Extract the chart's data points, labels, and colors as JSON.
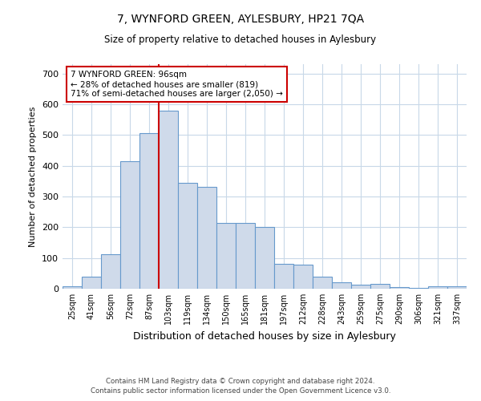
{
  "title": "7, WYNFORD GREEN, AYLESBURY, HP21 7QA",
  "subtitle": "Size of property relative to detached houses in Aylesbury",
  "xlabel": "Distribution of detached houses by size in Aylesbury",
  "ylabel": "Number of detached properties",
  "categories": [
    "25sqm",
    "41sqm",
    "56sqm",
    "72sqm",
    "87sqm",
    "103sqm",
    "119sqm",
    "134sqm",
    "150sqm",
    "165sqm",
    "181sqm",
    "197sqm",
    "212sqm",
    "228sqm",
    "243sqm",
    "259sqm",
    "275sqm",
    "290sqm",
    "306sqm",
    "321sqm",
    "337sqm"
  ],
  "values": [
    8,
    38,
    112,
    415,
    505,
    578,
    343,
    330,
    215,
    215,
    200,
    80,
    78,
    40,
    22,
    13,
    15,
    5,
    2,
    8,
    8
  ],
  "bar_color": "#cfdaea",
  "bar_edge_color": "#6699cc",
  "annotation_text": "7 WYNFORD GREEN: 96sqm\n← 28% of detached houses are smaller (819)\n71% of semi-detached houses are larger (2,050) →",
  "annotation_box_color": "#ffffff",
  "annotation_box_edge_color": "#cc0000",
  "ylim": [
    0,
    730
  ],
  "yticks": [
    0,
    100,
    200,
    300,
    400,
    500,
    600,
    700
  ],
  "footer_line1": "Contains HM Land Registry data © Crown copyright and database right 2024.",
  "footer_line2": "Contains public sector information licensed under the Open Government Licence v3.0.",
  "bg_color": "#ffffff",
  "grid_color": "#c8d8e8"
}
